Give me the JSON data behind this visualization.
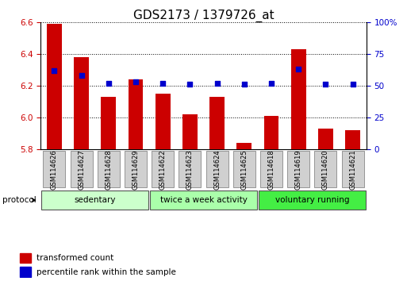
{
  "title": "GDS2173 / 1379726_at",
  "categories": [
    "GSM114626",
    "GSM114627",
    "GSM114628",
    "GSM114629",
    "GSM114622",
    "GSM114623",
    "GSM114624",
    "GSM114625",
    "GSM114618",
    "GSM114619",
    "GSM114620",
    "GSM114621"
  ],
  "transformed_count": [
    6.59,
    6.38,
    6.13,
    6.24,
    6.15,
    6.02,
    6.13,
    5.84,
    6.01,
    6.43,
    5.93,
    5.92
  ],
  "percentile_rank": [
    62,
    58,
    52,
    53,
    52,
    51,
    52,
    51,
    52,
    63,
    51,
    51
  ],
  "ylim_left": [
    5.8,
    6.6
  ],
  "ylim_right": [
    0,
    100
  ],
  "yticks_left": [
    5.8,
    6.0,
    6.2,
    6.4,
    6.6
  ],
  "yticks_right": [
    0,
    25,
    50,
    75,
    100
  ],
  "groups": [
    {
      "label": "sedentary",
      "n": 4,
      "color": "#ccffcc"
    },
    {
      "label": "twice a week activity",
      "n": 4,
      "color": "#aaffaa"
    },
    {
      "label": "voluntary running",
      "n": 4,
      "color": "#44ee44"
    }
  ],
  "bar_color": "#cc0000",
  "dot_color": "#0000cc",
  "bar_width": 0.55,
  "protocol_label": "protocol",
  "legend_bar_label": "transformed count",
  "legend_dot_label": "percentile rank within the sample",
  "tick_label_color_left": "#cc0000",
  "tick_label_color_right": "#0000cc",
  "title_fontsize": 11,
  "tick_fontsize": 7.5,
  "cat_fontsize": 6,
  "group_fontsize": 7.5,
  "legend_fontsize": 7.5
}
